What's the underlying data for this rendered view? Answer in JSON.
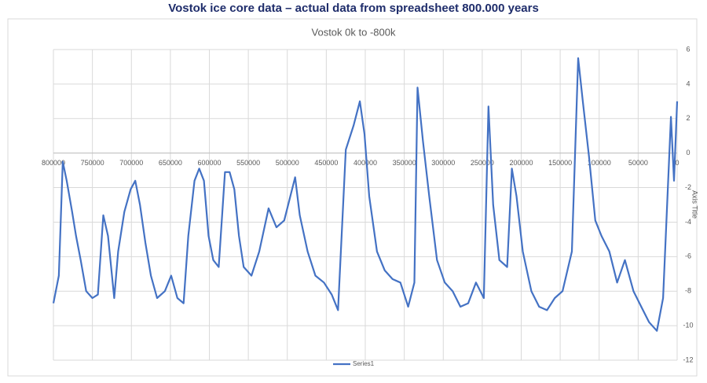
{
  "header": {
    "title": "Vostok ice core data – actual data from spreadsheet 800.000 years"
  },
  "chart_data": {
    "type": "line",
    "title": "Vostok 0k to -800k",
    "ylabel": "Axis Title",
    "x": [
      800000,
      793000,
      788000,
      783000,
      776000,
      771000,
      765000,
      758000,
      750000,
      743000,
      736000,
      730000,
      722000,
      717000,
      709000,
      701000,
      695000,
      689000,
      682000,
      675000,
      667000,
      657000,
      649000,
      641000,
      633000,
      627000,
      619000,
      613000,
      607000,
      601000,
      595000,
      588000,
      580000,
      574000,
      568000,
      562000,
      556000,
      546000,
      536000,
      524000,
      514000,
      504000,
      490000,
      484000,
      474000,
      464000,
      453000,
      443000,
      435000,
      425000,
      415000,
      407000,
      401000,
      395000,
      385000,
      375000,
      365000,
      355000,
      345000,
      337000,
      333000,
      326000,
      318000,
      308000,
      298000,
      288000,
      278000,
      268000,
      258000,
      248000,
      242000,
      236000,
      228000,
      218000,
      212000,
      206000,
      198000,
      187000,
      177000,
      167000,
      157000,
      147000,
      135000,
      127000,
      121000,
      113000,
      105000,
      97000,
      87000,
      77000,
      67000,
      56000,
      46000,
      36000,
      26000,
      18000,
      12000,
      8000,
      4000,
      0
    ],
    "series": [
      {
        "name": "Series1",
        "color": "#4472c4",
        "values": [
          -8.7,
          -7.1,
          -0.5,
          -1.6,
          -3.4,
          -4.8,
          -6.2,
          -8.0,
          -8.4,
          -8.2,
          -3.6,
          -4.8,
          -8.4,
          -5.7,
          -3.4,
          -2.1,
          -1.6,
          -3.0,
          -5.2,
          -7.1,
          -8.4,
          -8.0,
          -7.1,
          -8.4,
          -8.7,
          -4.8,
          -1.6,
          -0.9,
          -1.6,
          -4.8,
          -6.2,
          -6.6,
          -1.1,
          -1.1,
          -2.1,
          -4.8,
          -6.6,
          -7.1,
          -5.7,
          -3.2,
          -4.3,
          -3.9,
          -1.4,
          -3.6,
          -5.7,
          -7.1,
          -7.5,
          -8.2,
          -9.1,
          0.2,
          1.6,
          3.0,
          1.1,
          -2.5,
          -5.7,
          -6.8,
          -7.3,
          -7.5,
          -8.9,
          -7.5,
          3.8,
          0.7,
          -2.5,
          -6.2,
          -7.5,
          -8.0,
          -8.9,
          -8.7,
          -7.5,
          -8.4,
          2.7,
          -3.0,
          -6.2,
          -6.6,
          -0.9,
          -2.5,
          -5.7,
          -8.0,
          -8.9,
          -9.1,
          -8.4,
          -8.0,
          -5.7,
          5.5,
          3.0,
          -0.2,
          -3.9,
          -4.8,
          -5.7,
          -7.5,
          -6.2,
          -8.0,
          -8.9,
          -9.8,
          -10.3,
          -8.4,
          -2.1,
          2.1,
          -1.6,
          3.0
        ]
      }
    ],
    "xlim": [
      800000,
      0
    ],
    "xticks": [
      800000,
      750000,
      700000,
      650000,
      600000,
      550000,
      500000,
      450000,
      400000,
      350000,
      300000,
      250000,
      200000,
      150000,
      100000,
      50000,
      0
    ],
    "ylim": [
      -12,
      6
    ],
    "yticks": [
      -12,
      -10,
      -8,
      -6,
      -4,
      -2,
      0,
      2,
      4,
      6
    ],
    "grid": true,
    "legend": "bottom"
  }
}
